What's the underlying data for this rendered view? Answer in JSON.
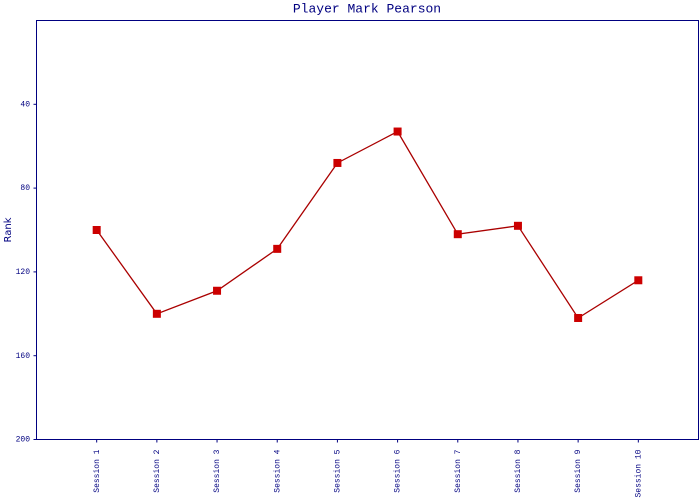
{
  "chart_data": {
    "type": "line",
    "title": "Player Mark Pearson",
    "y_label": "Rank",
    "categories": [
      "Session 1",
      "Session 2",
      "Session 3",
      "Session 4",
      "Session 5",
      "Session 6",
      "Session 7",
      "Session 8",
      "Session 9",
      "Session 10"
    ],
    "series": [
      {
        "color": "#aa0000",
        "marker_color": "#cc0000",
        "values": [
          100,
          140,
          129,
          109,
          68,
          53,
          102,
          98,
          142,
          124
        ]
      }
    ],
    "ylim": [
      0,
      200
    ],
    "y_reversed": true,
    "yticks": [
      40,
      80,
      120,
      160,
      200
    ],
    "grid": false
  }
}
